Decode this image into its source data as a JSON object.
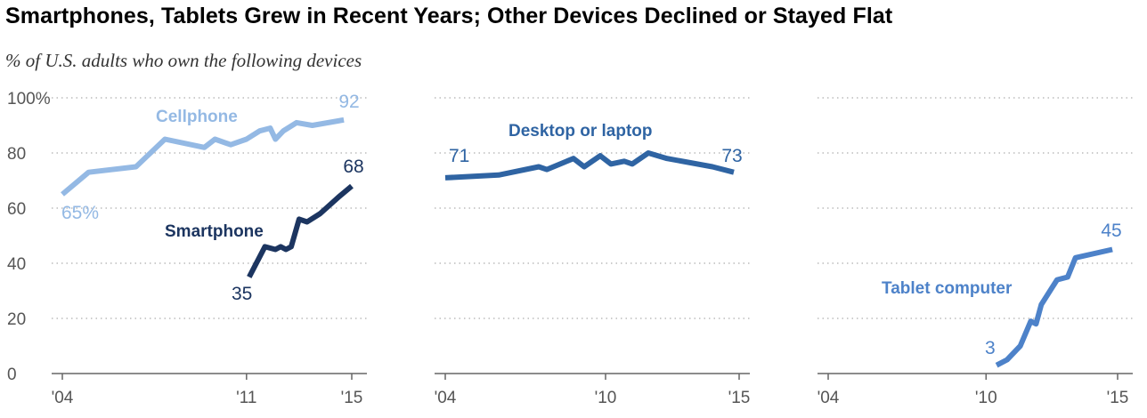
{
  "title": "Smartphones, Tablets Grew in Recent Years; Other Devices Declined or Stayed Flat",
  "subtitle": "% of U.S. adults who own the following devices",
  "colors": {
    "cellphone": "#94b9e4",
    "smartphone": "#1c3560",
    "desktop": "#2f64a3",
    "tablet": "#4d82c9",
    "grid": "#bbbbbb",
    "axis": "#666666",
    "tick_text": "#555555"
  },
  "y_ticks": [
    "100%",
    "80",
    "60",
    "40",
    "20",
    "0"
  ],
  "chart_data": [
    {
      "type": "line",
      "x_ticks": [
        "'04",
        "'11",
        "'15"
      ],
      "xlim": [
        2004,
        2015
      ],
      "ylim": [
        0,
        100
      ],
      "grid": true,
      "series": [
        {
          "name": "Cellphone",
          "color_key": "cellphone",
          "start_label": "65%",
          "end_label": "92",
          "points": [
            [
              2004,
              65
            ],
            [
              2005,
              73
            ],
            [
              2006.8,
              75
            ],
            [
              2007.9,
              85
            ],
            [
              2009.4,
              82
            ],
            [
              2009.8,
              85
            ],
            [
              2010.4,
              83
            ],
            [
              2011,
              85
            ],
            [
              2011.5,
              88
            ],
            [
              2011.9,
              89
            ],
            [
              2012.1,
              85
            ],
            [
              2012.4,
              88
            ],
            [
              2012.9,
              91
            ],
            [
              2013.5,
              90
            ],
            [
              2014.7,
              92
            ]
          ]
        },
        {
          "name": "Smartphone",
          "color_key": "smartphone",
          "start_label": "35",
          "end_label": "68",
          "points": [
            [
              2011.1,
              35
            ],
            [
              2011.7,
              46
            ],
            [
              2012.1,
              45
            ],
            [
              2012.3,
              46
            ],
            [
              2012.5,
              45
            ],
            [
              2012.7,
              46
            ],
            [
              2013,
              56
            ],
            [
              2013.3,
              55
            ],
            [
              2013.8,
              58
            ],
            [
              2014.5,
              64
            ],
            [
              2015,
              68
            ]
          ]
        }
      ]
    },
    {
      "type": "line",
      "x_ticks": [
        "'04",
        "'10",
        "'15"
      ],
      "xlim": [
        2004,
        2015
      ],
      "ylim": [
        0,
        100
      ],
      "grid": true,
      "series": [
        {
          "name": "Desktop or laptop",
          "color_key": "desktop",
          "start_label": "71",
          "end_label": "73",
          "points": [
            [
              2004,
              71
            ],
            [
              2006,
              72
            ],
            [
              2007.5,
              75
            ],
            [
              2007.8,
              74
            ],
            [
              2008.8,
              78
            ],
            [
              2009.2,
              75
            ],
            [
              2009.8,
              79
            ],
            [
              2010.2,
              76
            ],
            [
              2010.7,
              77
            ],
            [
              2011,
              76
            ],
            [
              2011.6,
              80
            ],
            [
              2012.3,
              78
            ],
            [
              2014,
              75
            ],
            [
              2014.8,
              73
            ]
          ]
        }
      ]
    },
    {
      "type": "line",
      "x_ticks": [
        "'04",
        "'10",
        "'15"
      ],
      "xlim": [
        2004,
        2015
      ],
      "ylim": [
        0,
        100
      ],
      "grid": true,
      "series": [
        {
          "name": "Tablet computer",
          "color_key": "tablet",
          "start_label": "3",
          "end_label": "45",
          "points": [
            [
              2010.4,
              3
            ],
            [
              2010.8,
              5
            ],
            [
              2011.3,
              10
            ],
            [
              2011.7,
              19
            ],
            [
              2011.9,
              18
            ],
            [
              2012.1,
              25
            ],
            [
              2012.5,
              31
            ],
            [
              2012.7,
              34
            ],
            [
              2013.1,
              35
            ],
            [
              2013.4,
              42
            ],
            [
              2014.8,
              45
            ]
          ]
        }
      ]
    }
  ]
}
